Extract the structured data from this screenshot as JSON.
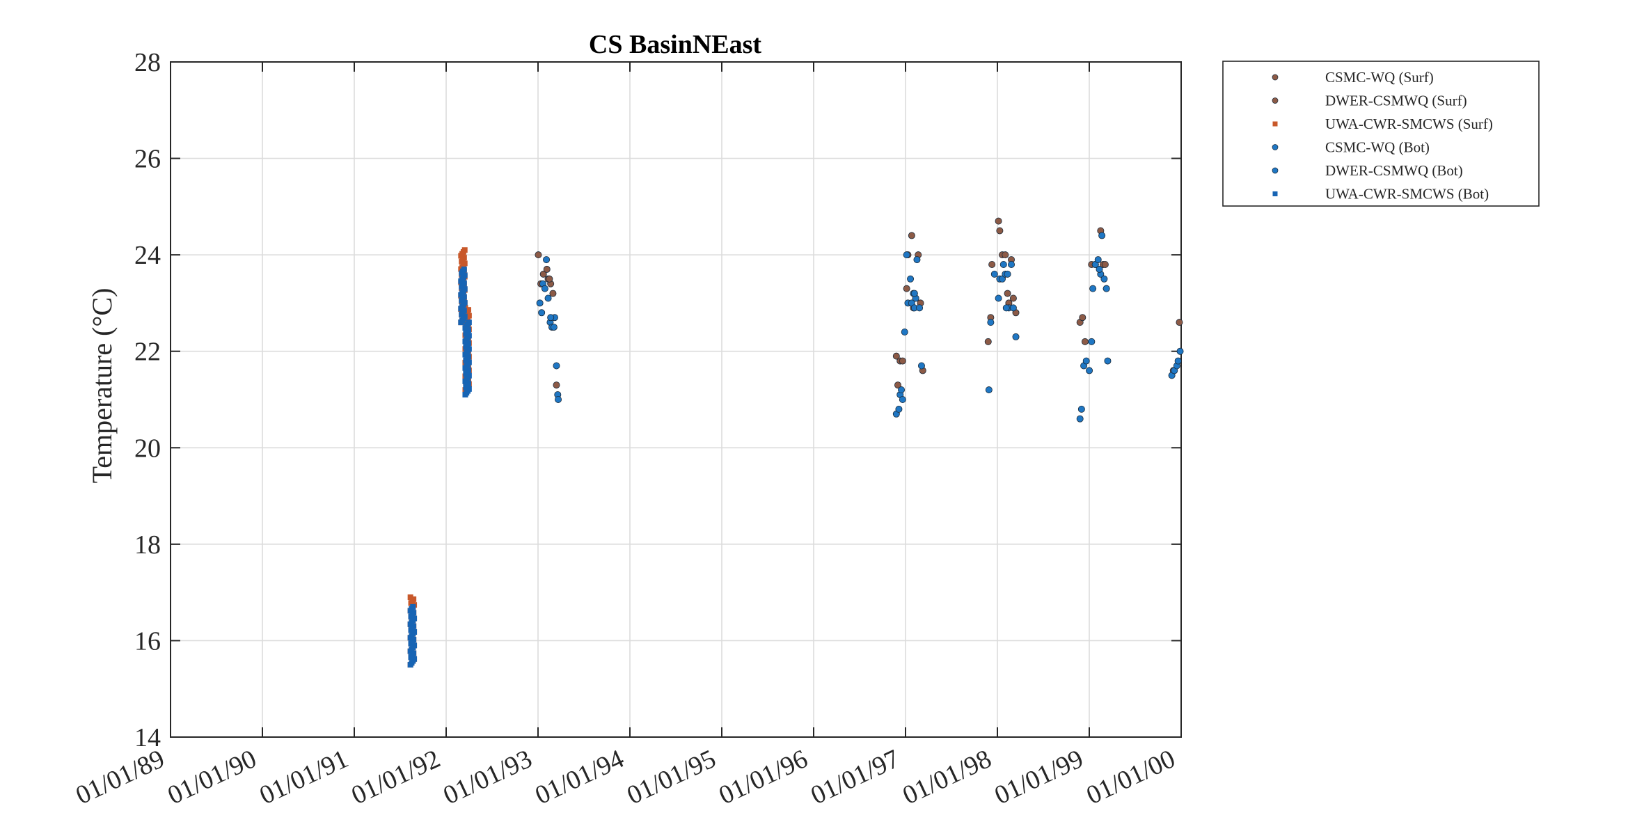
{
  "chart_data": {
    "type": "scatter",
    "title": "CS BasinNEast",
    "xlabel": "",
    "ylabel": "Temperature (°C)",
    "x_axis_type": "date",
    "xlim": [
      "1989-01-01",
      "2000-01-01"
    ],
    "ylim": [
      14,
      28
    ],
    "xticks": [
      "01/01/89",
      "01/01/90",
      "01/01/91",
      "01/01/92",
      "01/01/93",
      "01/01/94",
      "01/01/95",
      "01/01/96",
      "01/01/97",
      "01/01/98",
      "01/01/99",
      "01/01/00"
    ],
    "yticks": [
      14,
      16,
      18,
      20,
      22,
      24,
      26,
      28
    ],
    "grid": true,
    "legend_position": "outside-top-right",
    "colors": {
      "surf": "#8c5a46",
      "surf_uwa": "#c8582a",
      "bot": "#1f77c4",
      "bot_uwa": "#1764b4"
    },
    "series": [
      {
        "name": "CSMC-WQ (Surf)",
        "marker": "circle",
        "color": "#8c5a46",
        "points": [
          [
            "1993-01-02",
            24.0
          ],
          [
            "1993-01-12",
            23.4
          ],
          [
            "1993-01-22",
            23.6
          ],
          [
            "1993-02-05",
            23.7
          ],
          [
            "1993-02-10",
            23.5
          ],
          [
            "1993-02-20",
            23.4
          ],
          [
            "1993-03-01",
            23.2
          ],
          [
            "1993-03-15",
            21.3
          ],
          [
            "1996-11-25",
            21.9
          ],
          [
            "1996-12-01",
            21.3
          ],
          [
            "1996-12-10",
            21.8
          ],
          [
            "1996-12-20",
            21.8
          ],
          [
            "1997-01-05",
            23.3
          ],
          [
            "1997-01-10",
            24.0
          ],
          [
            "1997-01-25",
            24.4
          ],
          [
            "1997-02-10",
            23.1
          ],
          [
            "1997-02-20",
            24.0
          ],
          [
            "1997-03-01",
            23.0
          ],
          [
            "1997-03-10",
            21.6
          ],
          [
            "1997-11-25",
            22.2
          ],
          [
            "1997-12-05",
            22.7
          ],
          [
            "1997-12-10",
            23.8
          ],
          [
            "1998-01-05",
            24.7
          ],
          [
            "1998-01-10",
            24.5
          ],
          [
            "1998-01-20",
            24.0
          ],
          [
            "1998-02-01",
            24.0
          ],
          [
            "1998-02-10",
            23.2
          ],
          [
            "1998-02-25",
            23.9
          ],
          [
            "1998-03-05",
            23.1
          ],
          [
            "1998-03-15",
            22.8
          ],
          [
            "1998-11-25",
            22.6
          ],
          [
            "1998-12-05",
            22.7
          ],
          [
            "1998-12-15",
            22.2
          ],
          [
            "1999-01-10",
            23.8
          ],
          [
            "1999-01-25",
            23.8
          ],
          [
            "1999-02-15",
            24.5
          ],
          [
            "1999-02-25",
            23.8
          ],
          [
            "1999-03-10",
            23.3
          ],
          [
            "1999-12-01",
            21.6
          ],
          [
            "1999-12-25",
            22.6
          ]
        ]
      },
      {
        "name": "DWER-CSMWQ (Surf)",
        "marker": "circle",
        "color": "#8c5a46",
        "points": [
          [
            "1993-02-15",
            23.5
          ],
          [
            "1997-02-01",
            22.9
          ],
          [
            "1998-02-15",
            23.0
          ],
          [
            "1999-03-05",
            23.8
          ]
        ]
      },
      {
        "name": "UWA-CWR-SMCWS (Surf)",
        "marker": "square",
        "color": "#c8582a",
        "dense_segments": [
          {
            "x": "1991-08-20",
            "ymin": 15.5,
            "ymax": 16.9
          },
          {
            "x": "1992-03-08",
            "ymin": 22.6,
            "ymax": 24.1
          },
          {
            "x": "1992-03-25",
            "ymin": 21.2,
            "ymax": 22.9
          }
        ]
      },
      {
        "name": "CSMC-WQ (Bot)",
        "marker": "circle",
        "color": "#1f77c4",
        "points": [
          [
            "1993-01-08",
            23.0
          ],
          [
            "1993-01-15",
            22.8
          ],
          [
            "1993-01-20",
            23.4
          ],
          [
            "1993-01-28",
            23.3
          ],
          [
            "1993-02-03",
            23.9
          ],
          [
            "1993-02-10",
            23.1
          ],
          [
            "1993-02-18",
            22.6
          ],
          [
            "1993-02-25",
            22.5
          ],
          [
            "1993-03-05",
            22.5
          ],
          [
            "1993-03-08",
            22.7
          ],
          [
            "1993-03-15",
            21.7
          ],
          [
            "1993-03-20",
            21.1
          ],
          [
            "1993-03-22",
            21.0
          ],
          [
            "1996-11-25",
            20.7
          ],
          [
            "1996-12-05",
            20.8
          ],
          [
            "1996-12-10",
            21.1
          ],
          [
            "1996-12-15",
            21.2
          ],
          [
            "1996-12-20",
            21.0
          ],
          [
            "1996-12-28",
            22.4
          ],
          [
            "1997-01-05",
            24.0
          ],
          [
            "1997-01-10",
            23.0
          ],
          [
            "1997-01-20",
            23.5
          ],
          [
            "1997-01-25",
            23.0
          ],
          [
            "1997-02-01",
            23.2
          ],
          [
            "1997-02-05",
            22.9
          ],
          [
            "1997-02-10",
            23.1
          ],
          [
            "1997-02-15",
            23.9
          ],
          [
            "1997-02-25",
            22.9
          ],
          [
            "1997-03-05",
            21.7
          ],
          [
            "1997-11-28",
            21.2
          ],
          [
            "1997-12-05",
            22.6
          ],
          [
            "1997-12-20",
            23.6
          ],
          [
            "1998-01-05",
            23.1
          ],
          [
            "1998-01-10",
            23.5
          ],
          [
            "1998-01-20",
            23.5
          ],
          [
            "1998-01-25",
            23.8
          ],
          [
            "1998-02-01",
            23.6
          ],
          [
            "1998-02-10",
            23.6
          ],
          [
            "1998-02-15",
            22.9
          ],
          [
            "1998-02-25",
            23.8
          ],
          [
            "1998-03-05",
            22.9
          ],
          [
            "1998-03-15",
            22.3
          ],
          [
            "1998-11-25",
            20.6
          ],
          [
            "1998-12-01",
            20.8
          ],
          [
            "1998-12-10",
            21.7
          ],
          [
            "1998-12-20",
            21.8
          ],
          [
            "1999-01-01",
            21.6
          ],
          [
            "1999-01-10",
            22.2
          ],
          [
            "1999-01-15",
            23.3
          ],
          [
            "1999-01-25",
            23.8
          ],
          [
            "1999-02-05",
            23.9
          ],
          [
            "1999-02-15",
            23.6
          ],
          [
            "1999-02-20",
            24.4
          ],
          [
            "1999-03-01",
            23.5
          ],
          [
            "1999-03-10",
            23.3
          ],
          [
            "1999-03-15",
            21.8
          ],
          [
            "1999-11-25",
            21.5
          ],
          [
            "1999-12-05",
            21.6
          ],
          [
            "1999-12-15",
            21.7
          ],
          [
            "1999-12-20",
            21.8
          ],
          [
            "1999-12-28",
            22.0
          ]
        ]
      },
      {
        "name": "DWER-CSMWQ (Bot)",
        "marker": "circle",
        "color": "#1f77c4",
        "points": [
          [
            "1993-02-20",
            22.7
          ],
          [
            "1997-02-05",
            23.2
          ],
          [
            "1998-02-05",
            22.9
          ],
          [
            "1999-02-10",
            23.7
          ]
        ]
      },
      {
        "name": "UWA-CWR-SMCWS (Bot)",
        "marker": "square",
        "color": "#1764b4",
        "dense_segments": [
          {
            "x": "1991-08-20",
            "ymin": 15.5,
            "ymax": 16.7
          },
          {
            "x": "1992-03-08",
            "ymin": 22.6,
            "ymax": 23.7
          },
          {
            "x": "1992-03-25",
            "ymin": 21.1,
            "ymax": 22.6
          }
        ]
      }
    ]
  }
}
